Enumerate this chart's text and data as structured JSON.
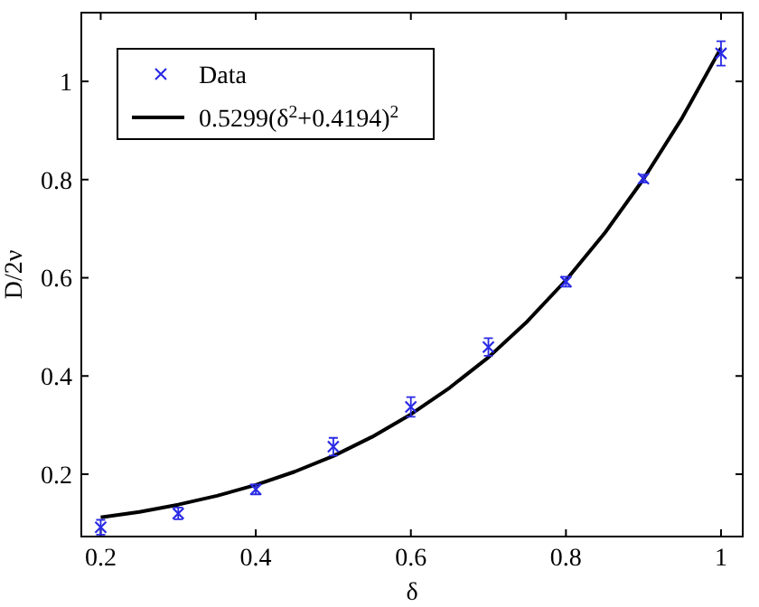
{
  "chart_data": {
    "type": "scatter",
    "xlabel": "δ",
    "ylabel": "D/2ν",
    "xlim": [
      0.175,
      1.028
    ],
    "ylim": [
      0.073,
      1.14
    ],
    "xticks": [
      0.2,
      0.4,
      0.6,
      0.8,
      1
    ],
    "yticks": [
      0.2,
      0.4,
      0.6,
      0.8,
      1
    ],
    "legend": "top left",
    "grid": false,
    "series": [
      {
        "name": "Data",
        "color": "#2a2ae6",
        "marker": "cross",
        "x": [
          0.2,
          0.3,
          0.4,
          0.5,
          0.6,
          0.7,
          0.8,
          0.9,
          1.0
        ],
        "values": [
          0.092,
          0.12,
          0.169,
          0.256,
          0.337,
          0.459,
          0.592,
          0.802,
          1.057
        ],
        "errors": [
          0.015,
          0.012,
          0.01,
          0.018,
          0.02,
          0.018,
          0.01,
          0.008,
          0.025
        ]
      },
      {
        "name": "0.5299(δ$^{2}$+0.4194)$^{2}$",
        "type": "line",
        "color": "#000000",
        "line_style": "solid",
        "marker": "none",
        "x": [
          0.2,
          0.25,
          0.3,
          0.35,
          0.4,
          0.45,
          0.5,
          0.55,
          0.6,
          0.65,
          0.7,
          0.75,
          0.8,
          0.85,
          0.9,
          0.95,
          1.0
        ],
        "values": [
          0.112,
          0.123,
          0.138,
          0.156,
          0.178,
          0.205,
          0.237,
          0.276,
          0.322,
          0.376,
          0.438,
          0.511,
          0.595,
          0.691,
          0.801,
          0.926,
          1.068
        ]
      }
    ]
  }
}
